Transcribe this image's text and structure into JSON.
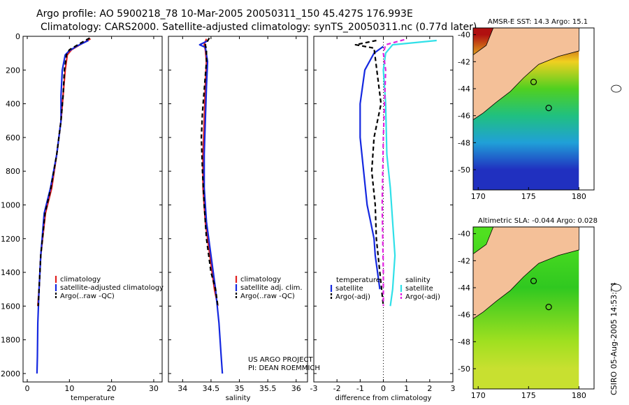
{
  "title_line1": "Argo profile: AO 5900218_78 10-Mar-2005 20050311_150 45.427S 176.993E",
  "title_line2": "Climatology: CARS2000. Satellite-adjusted climatology: synTS_20050311.nc (0.77d later)",
  "credit": "CSIRO 05-Aug-2005 14:53:24",
  "colors": {
    "red": "#e02020",
    "blue": "#1428e0",
    "black": "#000000",
    "cyan": "#30e0e8",
    "magenta": "#e020e0"
  },
  "chart_data": [
    {
      "type": "line",
      "xlabel": "temperature",
      "xlim": [
        -1,
        32
      ],
      "ylim": [
        0,
        2050
      ],
      "y_reversed": true,
      "xticks": [
        0,
        10,
        20,
        30
      ],
      "yticks": [
        0,
        200,
        400,
        600,
        800,
        1000,
        1200,
        1400,
        1600,
        1800,
        2000
      ],
      "legend": [
        "climatology",
        "satellite-adjusted climatology",
        "Argo(..raw -QC)"
      ],
      "series": [
        {
          "name": "climatology",
          "color": "red",
          "dash": false,
          "x": [
            15.0,
            12.5,
            10.5,
            9.5,
            9.0,
            8.5,
            8.0,
            7.0,
            5.8,
            4.3,
            3.2,
            2.8,
            2.5
          ],
          "y": [
            15,
            50,
            80,
            110,
            200,
            350,
            500,
            700,
            900,
            1050,
            1300,
            1500,
            1600
          ]
        },
        {
          "name": "satellite-adjusted climatology",
          "color": "blue",
          "dash": false,
          "x": [
            14.5,
            12.0,
            10.0,
            9.0,
            8.3,
            8.0,
            8.0,
            7.0,
            5.5,
            4.0,
            3.2,
            2.8,
            2.5,
            2.4,
            2.3
          ],
          "y": [
            25,
            55,
            85,
            110,
            200,
            350,
            500,
            700,
            900,
            1050,
            1300,
            1500,
            1700,
            1900,
            2000
          ]
        },
        {
          "name": "Argo(..raw -QC)",
          "color": "black",
          "dash": true,
          "x": [
            14.8,
            12.0,
            10.0,
            9.3,
            8.8,
            8.5,
            8.0,
            7.0,
            5.6,
            4.2,
            3.2,
            2.8,
            2.6
          ],
          "y": [
            10,
            50,
            80,
            110,
            200,
            350,
            500,
            700,
            900,
            1050,
            1300,
            1500,
            1600
          ]
        }
      ]
    },
    {
      "type": "line",
      "xlabel": "salinity",
      "xlim": [
        33.75,
        36.2
      ],
      "ylim": [
        0,
        2050
      ],
      "y_reversed": true,
      "xticks": [
        34,
        34.5,
        35,
        35.5,
        36
      ],
      "legend": [
        "climatology",
        "satellite adj. clim.",
        "Argo(..raw -QC)"
      ],
      "annotation": [
        "US ARGO PROJECT",
        "PI: DEAN ROEMMICH"
      ],
      "series": [
        {
          "name": "climatology",
          "color": "red",
          "dash": false,
          "x": [
            34.42,
            34.38,
            34.4,
            34.42,
            34.4,
            34.38,
            34.36,
            34.36,
            34.4,
            34.48,
            34.56,
            34.62
          ],
          "y": [
            15,
            50,
            80,
            150,
            300,
            500,
            700,
            900,
            1100,
            1300,
            1500,
            1600
          ]
        },
        {
          "name": "satellite adj. clim.",
          "color": "blue",
          "dash": false,
          "x": [
            34.45,
            34.3,
            34.4,
            34.44,
            34.42,
            34.4,
            34.38,
            34.38,
            34.42,
            34.5,
            34.58,
            34.64,
            34.68,
            34.7
          ],
          "y": [
            25,
            50,
            65,
            150,
            300,
            500,
            700,
            900,
            1100,
            1300,
            1500,
            1700,
            1900,
            2000
          ]
        },
        {
          "name": "Argo(..raw -QC)",
          "color": "black",
          "dash": true,
          "x": [
            34.47,
            34.4,
            34.42,
            34.42,
            34.35,
            34.33,
            34.35,
            34.38,
            34.42,
            34.5,
            34.58,
            34.62
          ],
          "y": [
            10,
            50,
            80,
            150,
            450,
            600,
            800,
            1000,
            1200,
            1400,
            1500,
            1600
          ]
        }
      ]
    },
    {
      "type": "line",
      "xlabel": "difference from climatology",
      "xlim": [
        -3,
        3
      ],
      "ylim": [
        0,
        2050
      ],
      "y_reversed": true,
      "xticks": [
        -3,
        -2,
        -1,
        0,
        1,
        2,
        3
      ],
      "legend_left": [
        "temperature",
        "satellite",
        "Argo(-adj)"
      ],
      "legend_right": [
        "salinity",
        "satellite",
        "Argo(-adj)"
      ],
      "series": [
        {
          "name": "temperature satellite",
          "color": "blue",
          "dash": false,
          "x": [
            0.0,
            -0.4,
            -0.8,
            -1.0,
            -1.0,
            -0.85,
            -0.7,
            -0.55,
            -0.4,
            -0.35,
            -0.25,
            -0.15
          ],
          "y": [
            60,
            100,
            200,
            400,
            600,
            800,
            1000,
            1100,
            1200,
            1300,
            1400,
            1500
          ]
        },
        {
          "name": "temperature Argo(-adj)",
          "color": "black",
          "dash": true,
          "x": [
            -0.3,
            -1.2,
            -0.4,
            -0.1,
            -0.4,
            -0.5,
            -0.35,
            -0.3,
            -0.15,
            0.0
          ],
          "y": [
            25,
            50,
            70,
            400,
            600,
            800,
            1000,
            1200,
            1400,
            1600
          ]
        },
        {
          "name": "salinity satellite",
          "color": "cyan",
          "dash": false,
          "x": [
            2.3,
            0.4,
            0.1,
            0.0,
            0.1,
            0.15,
            0.3,
            0.4,
            0.5,
            0.4,
            0.3
          ],
          "y": [
            25,
            50,
            100,
            200,
            400,
            700,
            900,
            1100,
            1300,
            1500,
            1600
          ]
        },
        {
          "name": "salinity Argo(-adj)",
          "color": "magenta",
          "dash": true,
          "x": [
            0.9,
            0.1,
            0.0,
            0.1,
            0.0,
            -0.05,
            0.0,
            0.0
          ],
          "y": [
            20,
            50,
            100,
            200,
            600,
            1000,
            1400,
            1600
          ]
        }
      ]
    },
    {
      "type": "heatmap",
      "title": "AMSR-E SST: 14.3 Argo: 15.1",
      "xticks": [
        170,
        175,
        180
      ],
      "yticks": [
        -40,
        -42,
        -44,
        -46,
        -48,
        -50
      ],
      "bands": [
        {
          "lat": -40,
          "color": "#b01010"
        },
        {
          "lat": -42,
          "color": "#f0d020"
        },
        {
          "lat": -44,
          "color": "#50d020"
        },
        {
          "lat": -46,
          "color": "#20c080"
        },
        {
          "lat": -48,
          "color": "#20a0d8"
        },
        {
          "lat": -50,
          "color": "#2030c0"
        }
      ]
    },
    {
      "type": "heatmap",
      "title": "Altimetric SLA: -0.044 Argo: 0.028",
      "xticks": [
        170,
        175,
        180
      ],
      "yticks": [
        -40,
        -42,
        -44,
        -46,
        -48,
        -50
      ],
      "bands": [
        {
          "lat": -40,
          "color": "#50e020"
        },
        {
          "lat": -44,
          "color": "#30c820"
        },
        {
          "lat": -48,
          "color": "#a0e020"
        },
        {
          "lat": -50,
          "color": "#c8e030"
        }
      ]
    }
  ]
}
